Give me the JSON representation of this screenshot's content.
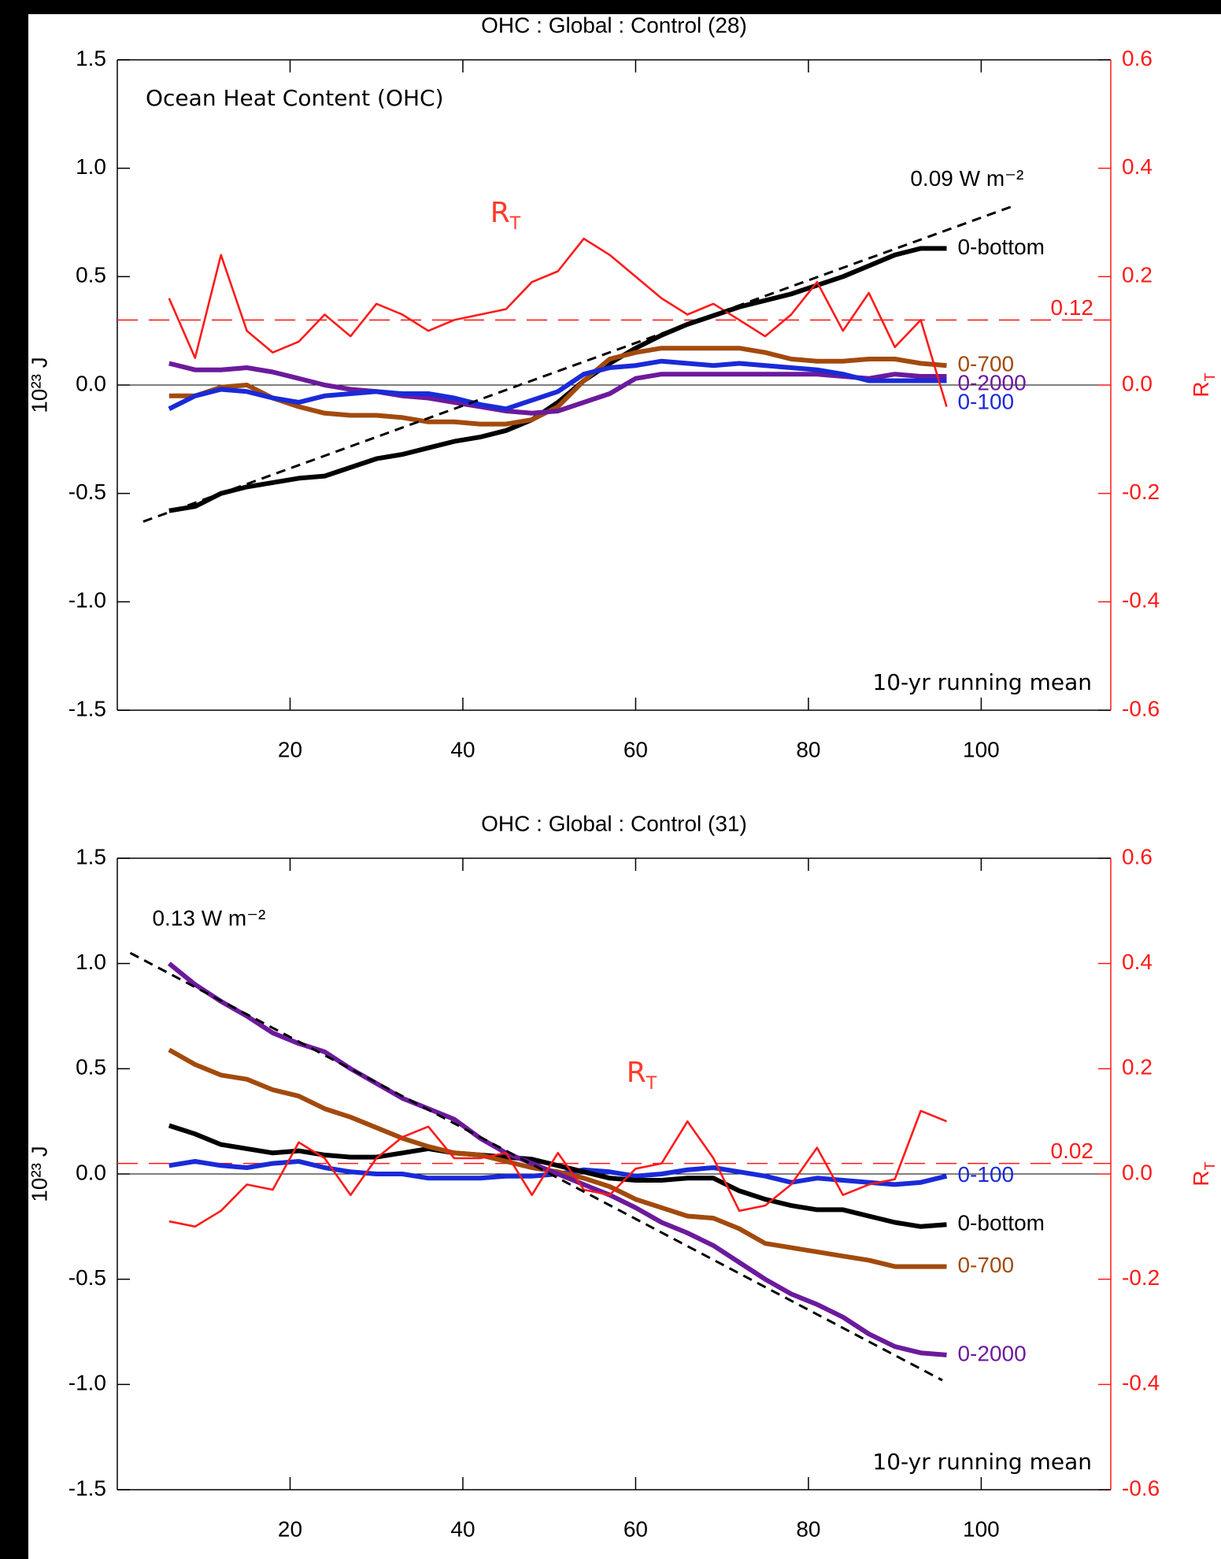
{
  "chart_data": [
    {
      "type": "line",
      "title": "OHC : Global : Control (28)",
      "annotation": "Ocean Heat Content (OHC)",
      "note": "10-yr running mean",
      "y_label": "10²³ J",
      "y2_label": {
        "base": "R",
        "sub": "T"
      },
      "rt_label": {
        "base": "R",
        "sub": "T"
      },
      "xlim": [
        0,
        115
      ],
      "xticks": [
        20,
        40,
        60,
        80,
        100
      ],
      "ylim": [
        -1.5,
        1.5
      ],
      "yticks": [
        1.5,
        {
          "value": 1,
          "label": "1.0"
        },
        0.5,
        {
          "value": 0,
          "label": "0.0"
        },
        -0.5,
        {
          "value": -1,
          "label": "-1.0"
        },
        -1.5
      ],
      "y2lim": [
        -0.6,
        0.6
      ],
      "y2ticks": [
        0.6,
        0.4,
        0.2,
        {
          "value": 0,
          "label": "0.0"
        },
        -0.2,
        -0.4,
        -0.6
      ],
      "x": [
        6,
        9,
        12,
        15,
        18,
        21,
        24,
        27,
        30,
        33,
        36,
        39,
        42,
        45,
        48,
        51,
        54,
        57,
        60,
        63,
        66,
        69,
        72,
        75,
        78,
        81,
        84,
        87,
        90,
        93,
        96
      ],
      "series": [
        {
          "name": "0-bottom",
          "color": "#000000",
          "values": [
            -0.58,
            -0.56,
            -0.5,
            -0.47,
            -0.45,
            -0.43,
            -0.42,
            -0.38,
            -0.34,
            -0.32,
            -0.29,
            -0.26,
            -0.24,
            -0.21,
            -0.16,
            -0.08,
            0.02,
            0.1,
            0.17,
            0.23,
            0.28,
            0.32,
            0.36,
            0.39,
            0.42,
            0.46,
            0.5,
            0.55,
            0.6,
            0.63,
            0.63
          ]
        },
        {
          "name": "0-700",
          "color": "#a24a0c",
          "values": [
            -0.05,
            -0.05,
            -0.01,
            0,
            -0.06,
            -0.1,
            -0.13,
            -0.14,
            -0.14,
            -0.15,
            -0.17,
            -0.17,
            -0.18,
            -0.18,
            -0.16,
            -0.1,
            0.02,
            0.12,
            0.15,
            0.17,
            0.17,
            0.17,
            0.17,
            0.15,
            0.12,
            0.11,
            0.11,
            0.12,
            0.12,
            0.1,
            0.09
          ]
        },
        {
          "name": "0-2000",
          "color": "#6c1a9c",
          "values": [
            0.1,
            0.07,
            0.07,
            0.08,
            0.06,
            0.03,
            0,
            -0.02,
            -0.03,
            -0.05,
            -0.06,
            -0.08,
            -0.1,
            -0.12,
            -0.13,
            -0.12,
            -0.08,
            -0.04,
            0.03,
            0.05,
            0.05,
            0.05,
            0.05,
            0.05,
            0.05,
            0.05,
            0.04,
            0.03,
            0.05,
            0.04,
            0.04
          ]
        },
        {
          "name": "0-100",
          "color": "#1a2ad8",
          "values": [
            -0.11,
            -0.05,
            -0.02,
            -0.03,
            -0.06,
            -0.08,
            -0.05,
            -0.04,
            -0.03,
            -0.04,
            -0.04,
            -0.06,
            -0.09,
            -0.11,
            -0.07,
            -0.03,
            0.05,
            0.08,
            0.09,
            0.11,
            0.1,
            0.09,
            0.1,
            0.09,
            0.08,
            0.07,
            0.05,
            0.02,
            0.02,
            0.02,
            0.02
          ]
        },
        {
          "color": "#ff1a1a",
          "axis": "y2",
          "values": [
            0.16,
            0.05,
            0.24,
            0.1,
            0.06,
            0.08,
            0.13,
            0.09,
            0.15,
            0.13,
            0.1,
            0.12,
            0.13,
            0.14,
            0.19,
            0.21,
            0.27,
            0.24,
            0.2,
            0.16,
            0.13,
            0.15,
            0.12,
            0.09,
            0.13,
            0.19,
            0.1,
            0.17,
            0.07,
            0.12,
            -0.04
          ]
        }
      ],
      "mean_line": {
        "value": 0.12,
        "label": "0.12"
      },
      "trend_line": {
        "x": [
          3,
          104
        ],
        "values": [
          -0.63,
          0.83
        ],
        "label": "0.09 W m⁻²"
      }
    },
    {
      "type": "line",
      "title": "OHC : Global : Control (31)",
      "note": "10-yr running mean",
      "y_label": "10²³ J",
      "y2_label": {
        "base": "R",
        "sub": "T"
      },
      "rt_label": {
        "base": "R",
        "sub": "T"
      },
      "xlim": [
        0,
        115
      ],
      "xticks": [
        20,
        40,
        60,
        80,
        100
      ],
      "ylim": [
        -1.5,
        1.5
      ],
      "yticks": [
        1.5,
        {
          "value": 1,
          "label": "1.0"
        },
        0.5,
        {
          "value": 0,
          "label": "0.0"
        },
        -0.5,
        {
          "value": -1,
          "label": "-1.0"
        },
        -1.5
      ],
      "y2lim": [
        -0.6,
        0.6
      ],
      "y2ticks": [
        0.6,
        0.4,
        0.2,
        {
          "value": 0,
          "label": "0.0"
        },
        -0.2,
        -0.4,
        -0.6
      ],
      "x": [
        6,
        9,
        12,
        15,
        18,
        21,
        24,
        27,
        30,
        33,
        36,
        39,
        42,
        45,
        48,
        51,
        54,
        57,
        60,
        63,
        66,
        69,
        72,
        75,
        78,
        81,
        84,
        87,
        90,
        93,
        96
      ],
      "series": [
        {
          "name": "0-100",
          "color": "#1a2ad8",
          "values": [
            0.04,
            0.06,
            0.04,
            0.03,
            0.05,
            0.06,
            0.03,
            0.01,
            0,
            0,
            -0.02,
            -0.02,
            -0.02,
            -0.01,
            -0.01,
            0,
            0.02,
            0.01,
            -0.01,
            0,
            0.02,
            0.03,
            0.01,
            -0.01,
            -0.04,
            -0.02,
            -0.03,
            -0.04,
            -0.05,
            -0.04,
            -0.01
          ]
        },
        {
          "name": "0-bottom",
          "color": "#000000",
          "values": [
            0.23,
            0.19,
            0.14,
            0.12,
            0.1,
            0.11,
            0.09,
            0.08,
            0.08,
            0.1,
            0.12,
            0.1,
            0.09,
            0.08,
            0.07,
            0.04,
            0.01,
            -0.02,
            -0.03,
            -0.03,
            -0.02,
            -0.02,
            -0.08,
            -0.12,
            -0.15,
            -0.17,
            -0.17,
            -0.2,
            -0.23,
            -0.25,
            -0.24
          ]
        },
        {
          "name": "0-700",
          "color": "#a24a0c",
          "values": [
            0.59,
            0.52,
            0.47,
            0.45,
            0.4,
            0.37,
            0.31,
            0.27,
            0.22,
            0.17,
            0.13,
            0.1,
            0.09,
            0.06,
            0.03,
            0.01,
            -0.02,
            -0.06,
            -0.12,
            -0.16,
            -0.2,
            -0.21,
            -0.26,
            -0.33,
            -0.35,
            -0.37,
            -0.39,
            -0.41,
            -0.44,
            -0.44,
            -0.44
          ]
        },
        {
          "name": "0-2000",
          "color": "#6c1a9c",
          "values": [
            1,
            0.9,
            0.82,
            0.75,
            0.67,
            0.62,
            0.58,
            0.5,
            0.43,
            0.36,
            0.31,
            0.26,
            0.17,
            0.1,
            0.05,
            0,
            -0.05,
            -0.1,
            -0.16,
            -0.23,
            -0.28,
            -0.34,
            -0.42,
            -0.5,
            -0.57,
            -0.62,
            -0.68,
            -0.76,
            -0.82,
            -0.85,
            -0.86
          ]
        },
        {
          "color": "#ff1a1a",
          "axis": "y2",
          "values": [
            -0.09,
            -0.1,
            -0.07,
            -0.02,
            -0.03,
            0.06,
            0.03,
            -0.04,
            0.03,
            0.07,
            0.09,
            0.03,
            0.03,
            0.04,
            -0.04,
            0.04,
            -0.03,
            -0.04,
            0.01,
            0.02,
            0.1,
            0.03,
            -0.07,
            -0.06,
            -0.02,
            0.05,
            -0.04,
            -0.02,
            -0.01,
            0.12,
            0.1
          ]
        }
      ],
      "mean_line": {
        "value": 0.02,
        "label": "0.02"
      },
      "trend_line": {
        "x": [
          1.5,
          95.5
        ],
        "values": [
          1.05,
          -0.98
        ],
        "label": "0.13 W m⁻²"
      }
    }
  ]
}
